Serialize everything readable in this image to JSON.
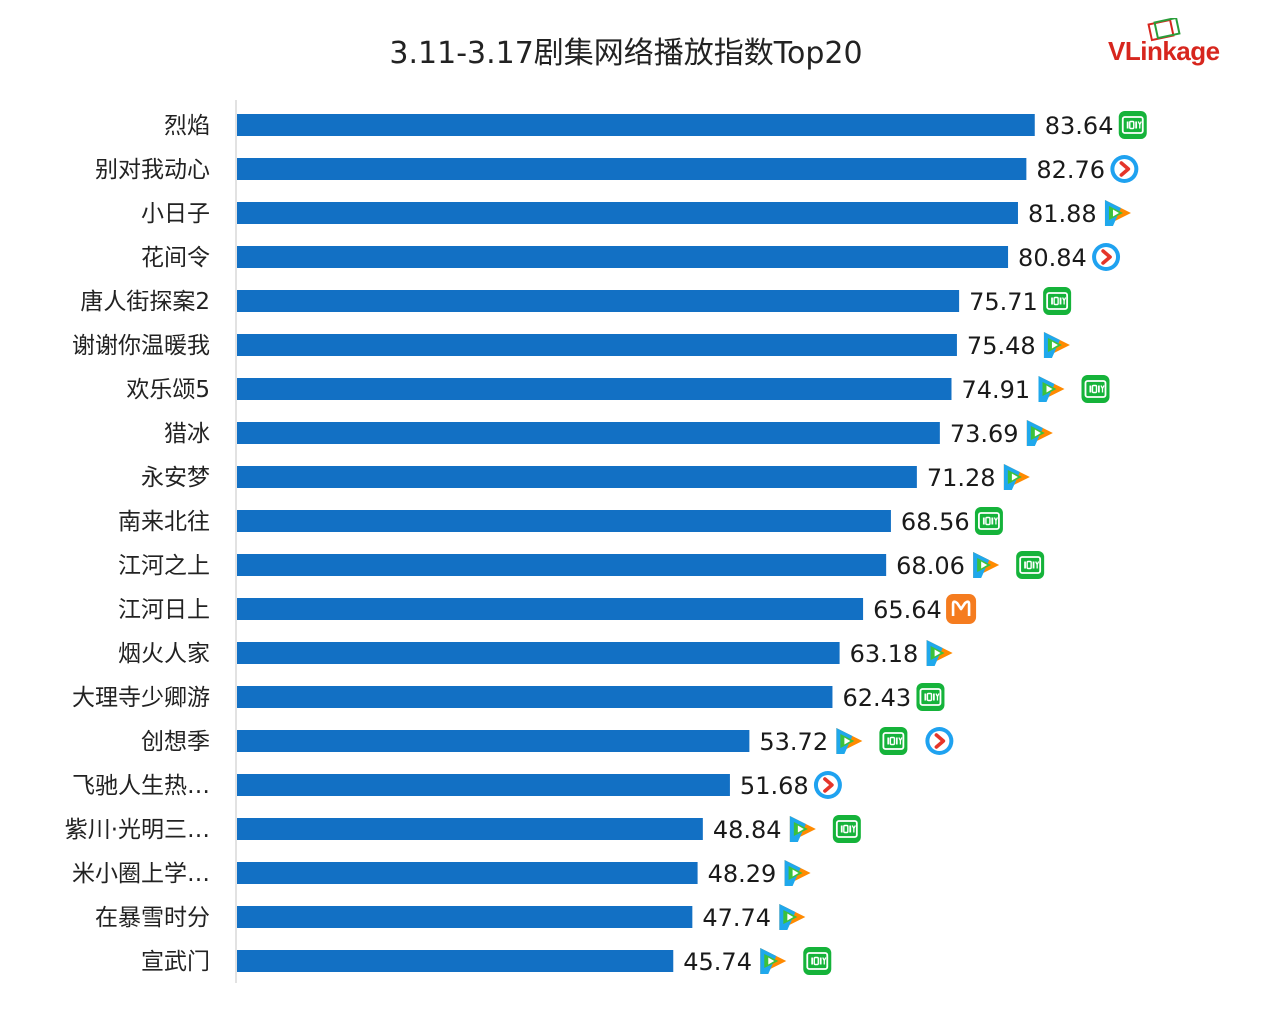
{
  "title": "3.11-3.17剧集网络播放指数Top20",
  "logo": {
    "prefix": "VL",
    "rest": "inkage",
    "icon": "vlinkage-logo"
  },
  "colors": {
    "bar": "#1270c4",
    "axis": "#d9d9d9",
    "iqiyi": "#15b33a",
    "tencent_orange": "#ff8a00",
    "tencent_blue": "#1fa8ec",
    "tencent_green": "#3cc13b",
    "youku_blue": "#1fa2f0",
    "youku_red": "#e5352a",
    "mango": "#f57c1f"
  },
  "chart_data": {
    "type": "bar",
    "orientation": "horizontal",
    "title": "3.11-3.17剧集网络播放指数Top20",
    "categories": [
      "烈焰",
      "别对我动心",
      "小日子",
      "花间令",
      "唐人街探案2",
      "谢谢你温暖我",
      "欢乐颂5",
      "猎冰",
      "永安梦",
      "南来北往",
      "江河之上",
      "江河日上",
      "烟火人家",
      "大理寺少卿游",
      "创想季",
      "飞驰人生热…",
      "紫川·光明三…",
      "米小圈上学…",
      "在暴雪时分",
      "宣武门"
    ],
    "values": [
      83.64,
      82.76,
      81.88,
      80.84,
      75.71,
      75.48,
      74.91,
      73.69,
      71.28,
      68.56,
      68.06,
      65.64,
      63.18,
      62.43,
      53.72,
      51.68,
      48.84,
      48.29,
      47.74,
      45.74
    ],
    "value_labels": [
      "83.64",
      "82.76",
      "81.88",
      "80.84",
      "75.71",
      "75.48",
      "74.91",
      "73.69",
      "71.28",
      "68.56",
      "68.06",
      "65.64",
      "63.18",
      "62.43",
      "53.72",
      "51.68",
      "48.84",
      "48.29",
      "47.74",
      "45.74"
    ],
    "platforms": [
      [
        "iqiyi"
      ],
      [
        "youku"
      ],
      [
        "tencent"
      ],
      [
        "youku"
      ],
      [
        "iqiyi"
      ],
      [
        "tencent"
      ],
      [
        "tencent",
        "iqiyi"
      ],
      [
        "tencent"
      ],
      [
        "tencent"
      ],
      [
        "iqiyi"
      ],
      [
        "tencent",
        "iqiyi"
      ],
      [
        "mango"
      ],
      [
        "tencent"
      ],
      [
        "iqiyi"
      ],
      [
        "tencent",
        "iqiyi",
        "youku"
      ],
      [
        "youku"
      ],
      [
        "tencent",
        "iqiyi"
      ],
      [
        "tencent"
      ],
      [
        "tencent"
      ],
      [
        "tencent",
        "iqiyi"
      ]
    ],
    "xlim": [
      0,
      100
    ],
    "grid": false,
    "legend": "none"
  }
}
